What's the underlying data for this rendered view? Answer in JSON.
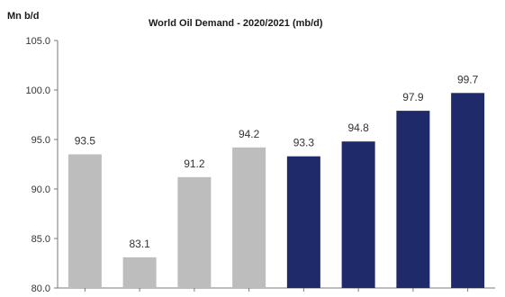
{
  "chart_data": {
    "type": "bar",
    "title": "World Oil Demand - 2020/2021 (mb/d)",
    "ylabel": "Mn b/d",
    "xlabel": "",
    "ylim": [
      80.0,
      105.0
    ],
    "yticks": [
      "80.0",
      "85.0",
      "90.0",
      "95.0",
      "100.0",
      "105.0"
    ],
    "categories": [
      "",
      "",
      "",
      "",
      "",
      "",
      "",
      ""
    ],
    "values": [
      93.5,
      83.1,
      91.2,
      94.2,
      93.3,
      94.8,
      97.9,
      99.7
    ],
    "value_labels": [
      "93.5",
      "83.1",
      "91.2",
      "94.2",
      "93.3",
      "94.8",
      "97.9",
      "99.7"
    ],
    "colors": [
      "#bdbdbd",
      "#bdbdbd",
      "#bdbdbd",
      "#bdbdbd",
      "#1f2a6b",
      "#1f2a6b",
      "#1f2a6b",
      "#1f2a6b"
    ],
    "grid": false,
    "legend": "none"
  }
}
